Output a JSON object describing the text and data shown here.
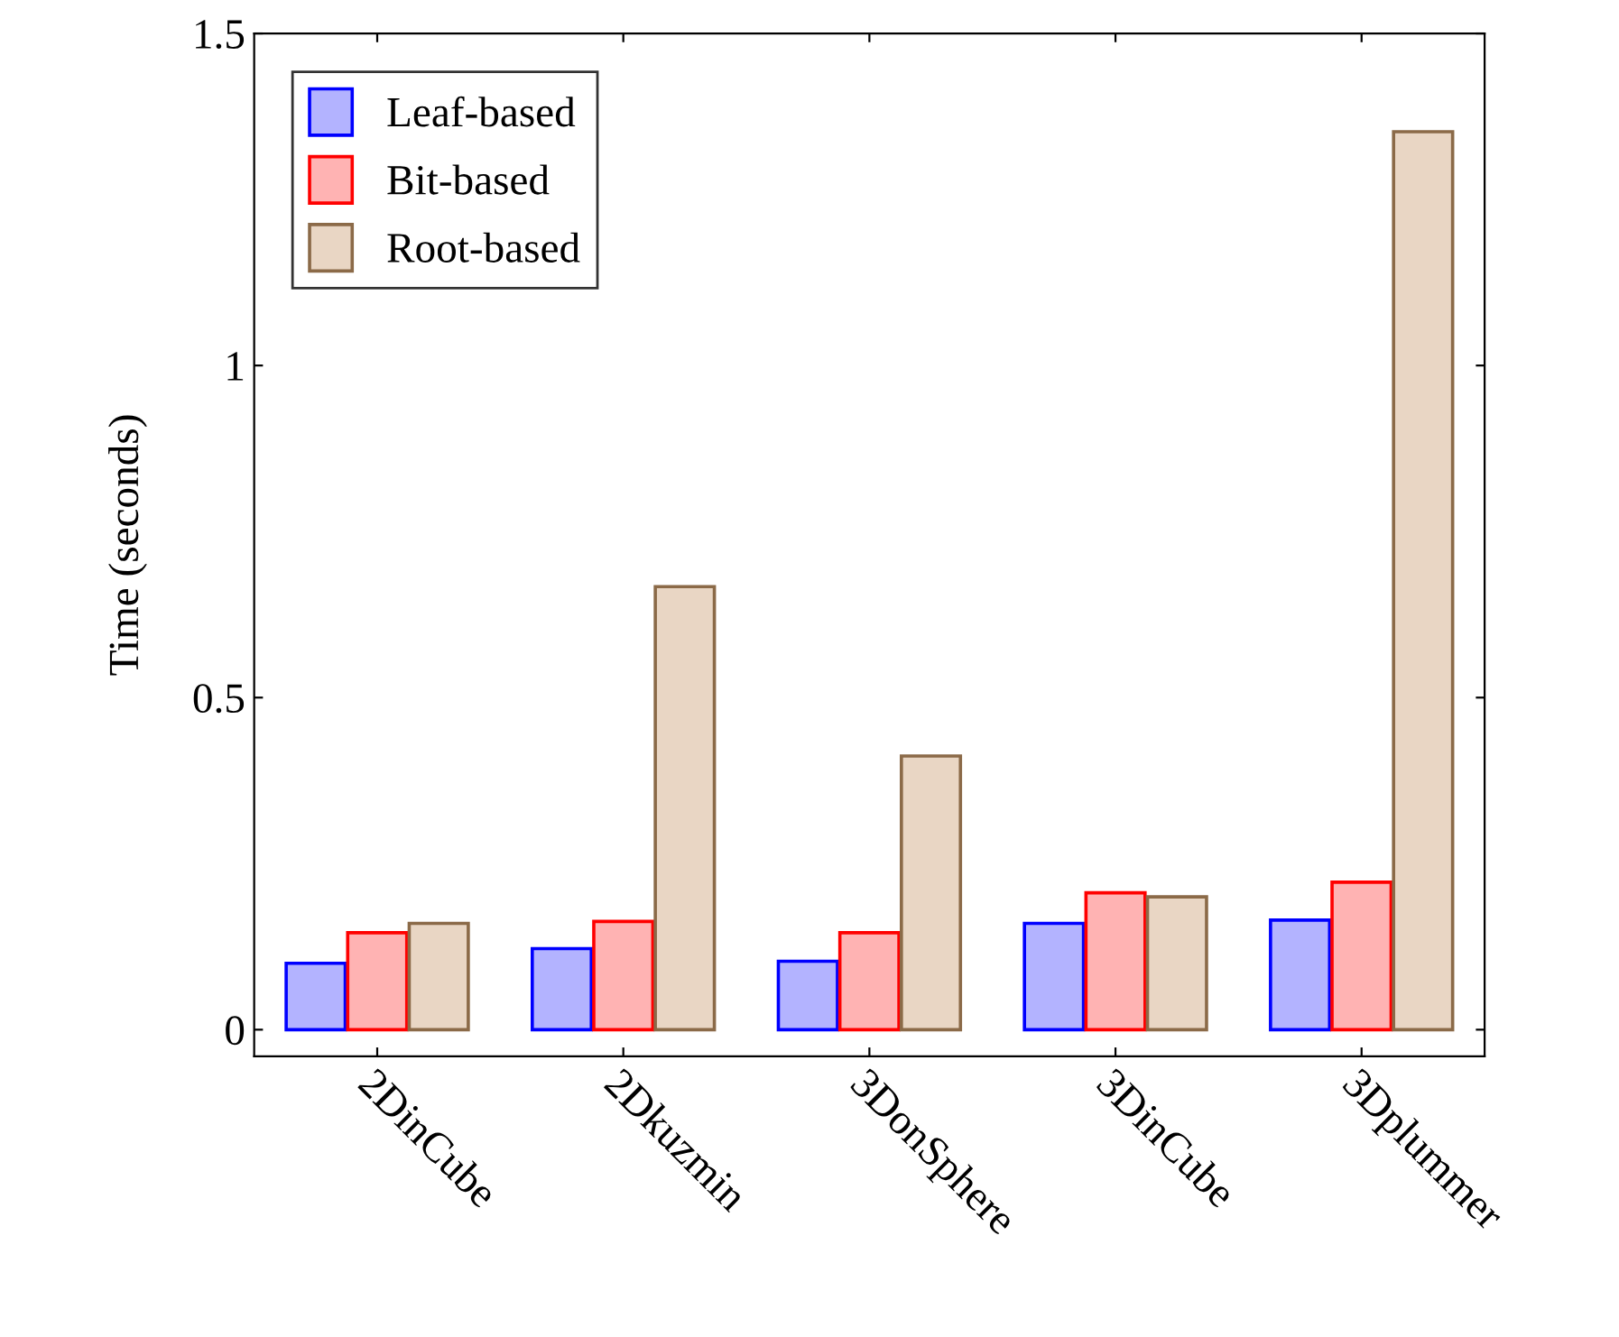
{
  "chart_data": {
    "type": "bar",
    "ylabel": "Time (seconds)",
    "categories": [
      "2DinCube",
      "2Dkuzmin",
      "3DonSphere",
      "3DinCube",
      "3Dplummer"
    ],
    "series": [
      {
        "name": "Leaf-based",
        "color": "#b3b3ff",
        "values": [
          0.1,
          0.122,
          0.103,
          0.16,
          0.165
        ]
      },
      {
        "name": "Bit-based",
        "color": "#ffb3b3",
        "values": [
          0.146,
          0.163,
          0.146,
          0.206,
          0.222
        ]
      },
      {
        "name": "Root-based",
        "color": "#e9d6c4",
        "values": [
          0.16,
          0.667,
          0.412,
          0.2,
          1.352
        ]
      }
    ],
    "ylim": [
      -0.04,
      1.5
    ],
    "yticks": [
      0,
      0.5,
      1,
      1.5
    ],
    "grid": false,
    "legend": "top left"
  }
}
